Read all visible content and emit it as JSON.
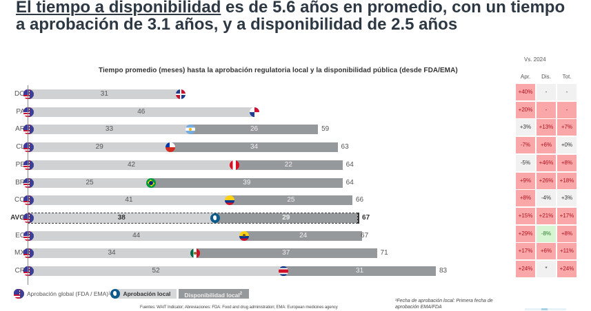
{
  "headline": {
    "part1_underlined": "El tiempo a disponibilidad",
    "part2": " es de 5.6 años en promedio, con un tiempo a aprobación de 3.1 años, y a disponibilidad de 2.5 años"
  },
  "chart_data": {
    "type": "bar",
    "orientation": "horizontal-stacked",
    "title": "Tiempo promedio (meses) hasta la aprobación regulatoria local y la disponibilidad pública (desde FDA/EMA)",
    "xlabel": "",
    "ylabel": "",
    "xlim": [
      0,
      83
    ],
    "unit": "meses",
    "categories": [
      "DO",
      "PA",
      "AR",
      "CL",
      "PE",
      "BR",
      "CO",
      "AVG",
      "EC",
      "MX",
      "CR"
    ],
    "series": [
      {
        "name": "Aprobación local",
        "values": [
          31,
          46,
          33,
          29,
          42,
          25,
          41,
          38,
          44,
          34,
          52
        ]
      },
      {
        "name": "Disponibilidad local",
        "values": [
          null,
          null,
          26,
          34,
          22,
          39,
          25,
          29,
          24,
          37,
          31
        ]
      }
    ],
    "totals": [
      null,
      null,
      59,
      63,
      64,
      64,
      66,
      67,
      67,
      71,
      83
    ],
    "highlight_category": "AVG",
    "legend": {
      "position": "bottom-left",
      "items": [
        "Aprobación global (FDA / EMA)¹",
        "Aprobación local",
        "Disponibilidad local²"
      ]
    }
  },
  "flags": [
    "do",
    "pa",
    "ar",
    "cl",
    "pe",
    "br",
    "co",
    "avg",
    "ec",
    "mx",
    "cr"
  ],
  "vs_table": {
    "title": "Vs. 2024",
    "headers": [
      "Apr.",
      "Dis.",
      "Tot."
    ],
    "rows": [
      [
        {
          "v": "+40%",
          "c": "red"
        },
        {
          "v": "-",
          "c": "gray"
        },
        {
          "v": "-",
          "c": "gray"
        }
      ],
      [
        {
          "v": "+20%",
          "c": "red"
        },
        {
          "v": "-",
          "c": "red"
        },
        {
          "v": "-",
          "c": "red"
        }
      ],
      [
        {
          "v": "+3%",
          "c": "gray"
        },
        {
          "v": "+13%",
          "c": "red"
        },
        {
          "v": "+7%",
          "c": "red"
        }
      ],
      [
        {
          "v": "-7%",
          "c": "red"
        },
        {
          "v": "+6%",
          "c": "red"
        },
        {
          "v": "+0%",
          "c": "gray"
        }
      ],
      [
        {
          "v": "-5%",
          "c": "gray"
        },
        {
          "v": "+46%",
          "c": "red"
        },
        {
          "v": "+8%",
          "c": "red"
        }
      ],
      [
        {
          "v": "+9%",
          "c": "red"
        },
        {
          "v": "+26%",
          "c": "red"
        },
        {
          "v": "+18%",
          "c": "red"
        }
      ],
      [
        {
          "v": "+8%",
          "c": "red"
        },
        {
          "v": "-4%",
          "c": "gray"
        },
        {
          "v": "+3%",
          "c": "gray"
        }
      ],
      [
        {
          "v": "+15%",
          "c": "red"
        },
        {
          "v": "+21%",
          "c": "red"
        },
        {
          "v": "+17%",
          "c": "red"
        }
      ],
      [
        {
          "v": "+29%",
          "c": "red"
        },
        {
          "v": "-8%",
          "c": "green"
        },
        {
          "v": "+8%",
          "c": "red"
        }
      ],
      [
        {
          "v": "+17%",
          "c": "red"
        },
        {
          "v": "+6%",
          "c": "red"
        },
        {
          "v": "+11%",
          "c": "red"
        }
      ],
      [
        {
          "v": "+24%",
          "c": "red"
        },
        {
          "v": "*",
          "c": "gray"
        },
        {
          "v": "+24%",
          "c": "red"
        }
      ]
    ]
  },
  "legend": {
    "global": "Aprobación global (FDA / EMA)",
    "global_sup": "1",
    "local": "Aprobación local",
    "disp": "Disponibilidad local",
    "disp_sup": "2"
  },
  "sources": "Fuentes: WAIT Indicator; Abreviaciones: FDA: Food and drug administration; EMA: European medicines agency",
  "footnote": "¹Fecha de aprobación local: Primera fecha de aprobación EMA/FDA",
  "colors": {
    "approval_bar": "#cfd1d3",
    "availability_bar": "#96999b",
    "increase_cell": "#f9a7a8",
    "neutral_cell": "#f1f1f1",
    "decrease_cell": "#d7f5d2"
  }
}
